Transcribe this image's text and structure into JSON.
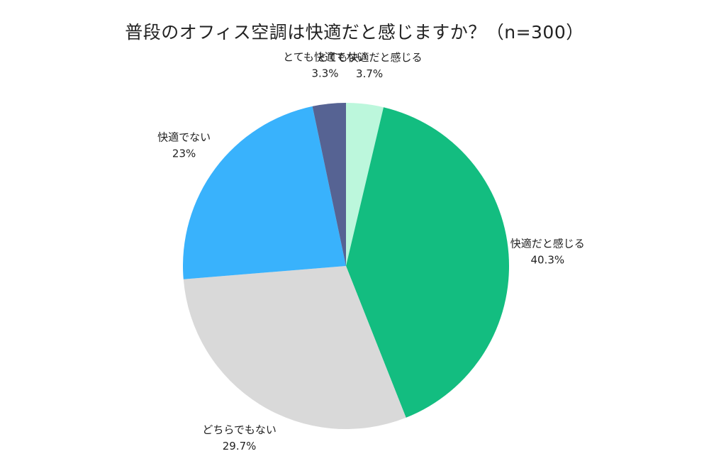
{
  "chart_data": {
    "type": "pie",
    "title": "普段のオフィス空調は快適だと感じますか？（n=300）",
    "start_angle_deg": 0,
    "direction": "clockwise",
    "slices": [
      {
        "label": "とても快適だと感じる",
        "value_label": "3.7%",
        "value": 3.7,
        "color": "#bcf7dc"
      },
      {
        "label": "快適だと感じる",
        "value_label": "40.3%",
        "value": 40.3,
        "color": "#13bd80"
      },
      {
        "label": "どちらでもない",
        "value_label": "29.7%",
        "value": 29.7,
        "color": "#d9d9d9"
      },
      {
        "label": "快適でない",
        "value_label": "23%",
        "value": 23,
        "color": "#39b2fc"
      },
      {
        "label": "とても快適でない",
        "value_label": "3.3%",
        "value": 3.3,
        "color": "#566393"
      }
    ]
  }
}
